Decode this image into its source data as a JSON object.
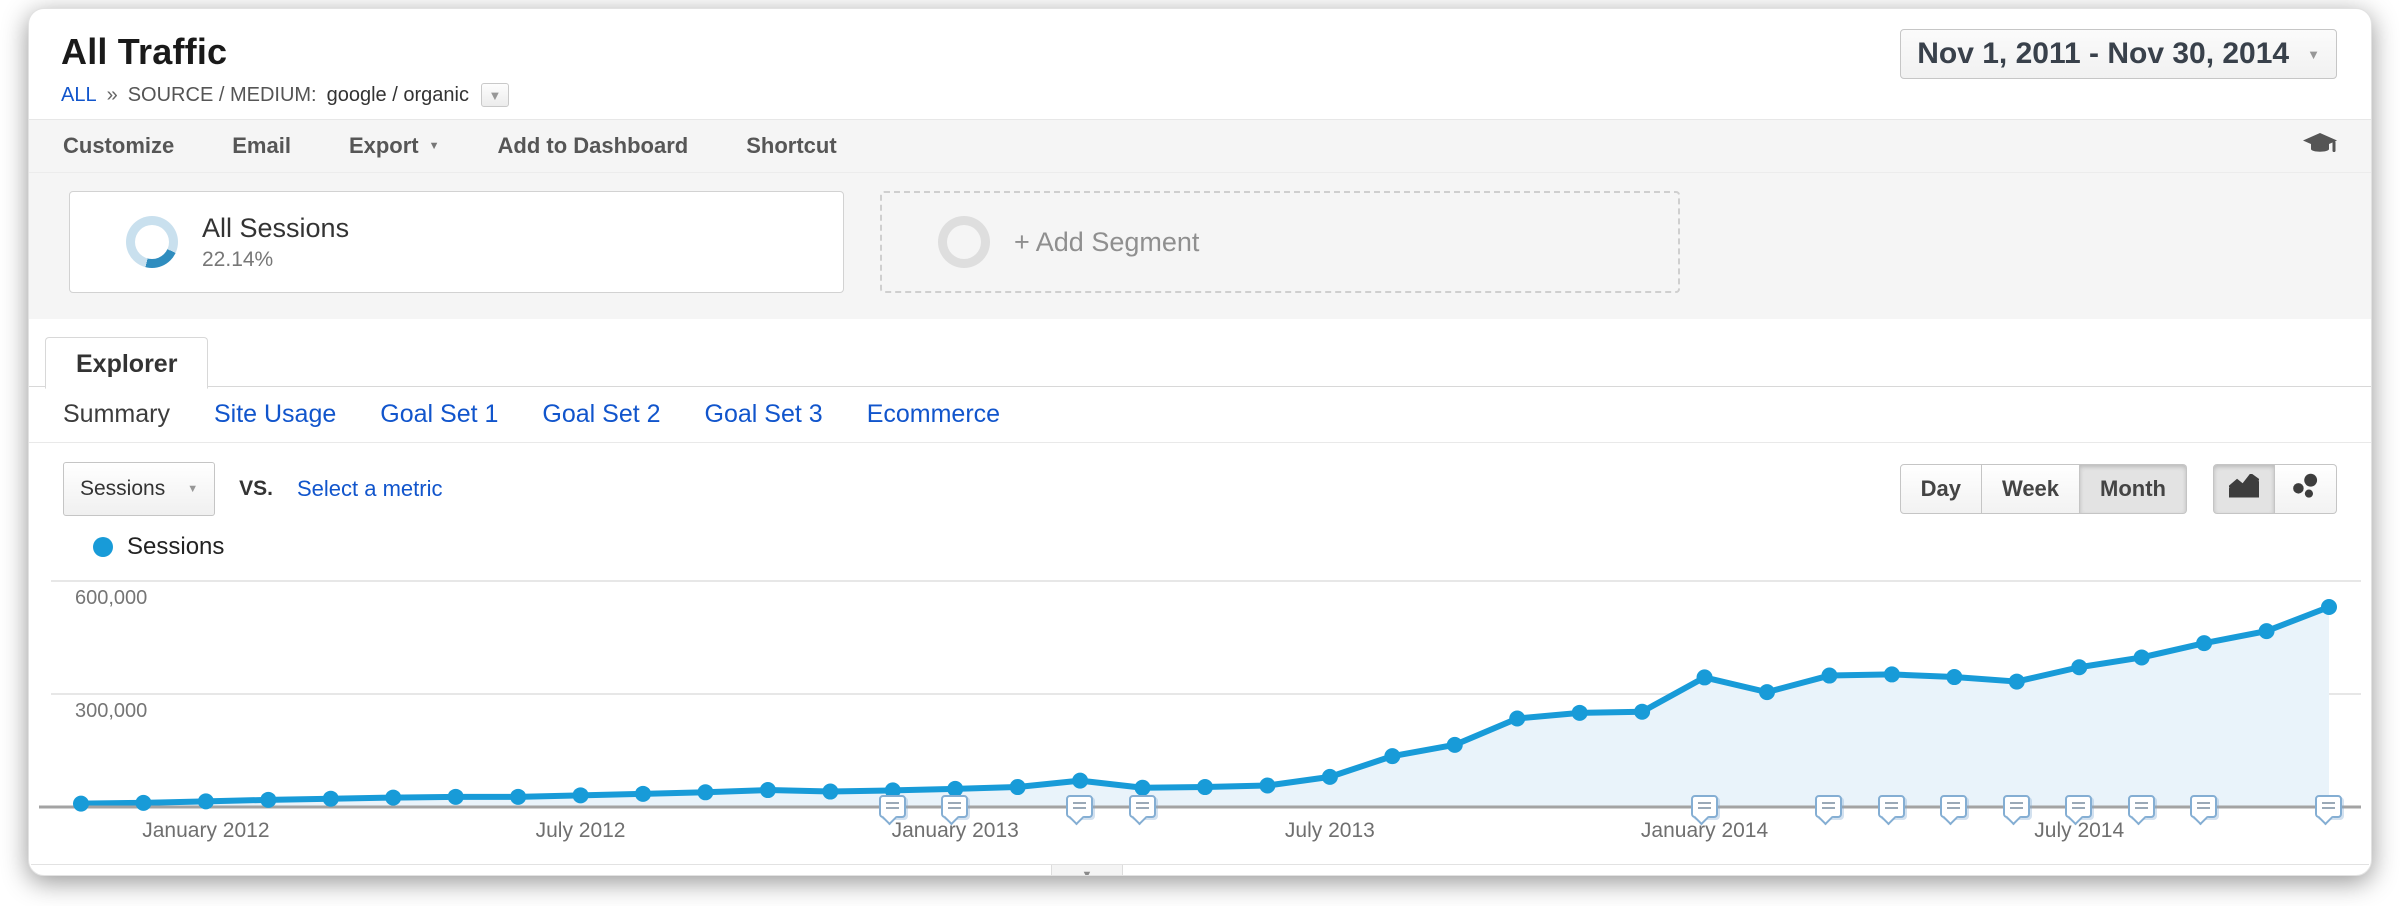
{
  "header": {
    "title": "All Traffic",
    "breadcrumb": {
      "root": "ALL",
      "separator": "»",
      "label": "SOURCE / MEDIUM:",
      "value": "google / organic"
    },
    "date_range": "Nov 1, 2011 - Nov 30, 2014"
  },
  "toolbar": {
    "items": [
      {
        "label": "Customize"
      },
      {
        "label": "Email"
      },
      {
        "label": "Export",
        "caret": true
      },
      {
        "label": "Add to Dashboard"
      },
      {
        "label": "Shortcut"
      }
    ],
    "education_icon": "graduation-cap"
  },
  "segments": {
    "all_sessions": {
      "label": "All Sessions",
      "percent": "22.14%",
      "ring_arc_color": "#2f8dbf",
      "ring_track_color": "#c9e0ee"
    },
    "add_segment_label": "+ Add Segment"
  },
  "explorer": {
    "tab_label": "Explorer",
    "subtabs": [
      {
        "label": "Summary",
        "active": true
      },
      {
        "label": "Site Usage"
      },
      {
        "label": "Goal Set 1"
      },
      {
        "label": "Goal Set 2"
      },
      {
        "label": "Goal Set 3"
      },
      {
        "label": "Ecommerce"
      }
    ]
  },
  "controls": {
    "metric_selector_value": "Sessions",
    "vs_label": "vs.",
    "select_metric_label": "Select a metric",
    "granularity": [
      {
        "label": "Day"
      },
      {
        "label": "Week"
      },
      {
        "label": "Month",
        "active": true
      }
    ],
    "chart_type_buttons": [
      {
        "name": "line-chart",
        "active": true
      },
      {
        "name": "motion-chart",
        "active": false
      }
    ]
  },
  "legend": {
    "label": "Sessions"
  },
  "colors": {
    "link": "#1155cc",
    "series_line": "#189bd8",
    "series_fill": "#e9f3fa",
    "axis_line": "#a3a3a3"
  },
  "chart_data": {
    "type": "line",
    "title": "Sessions by month",
    "series": [
      {
        "name": "Sessions",
        "color": "#189bd8",
        "values": [
          9000,
          11000,
          15000,
          19000,
          22000,
          25000,
          27000,
          27000,
          31000,
          35000,
          39000,
          45000,
          41000,
          44000,
          48000,
          53000,
          70000,
          51000,
          53000,
          57000,
          80000,
          135000,
          165000,
          235000,
          250000,
          253000,
          344000,
          305000,
          349000,
          352000,
          345000,
          333000,
          371000,
          397000,
          435000,
          467000,
          531000
        ]
      }
    ],
    "x": [
      "Nov 2011",
      "Dec 2011",
      "Jan 2012",
      "Feb 2012",
      "Mar 2012",
      "Apr 2012",
      "May 2012",
      "Jun 2012",
      "Jul 2012",
      "Aug 2012",
      "Sep 2012",
      "Oct 2012",
      "Nov 2012",
      "Dec 2012",
      "Jan 2013",
      "Feb 2013",
      "Mar 2013",
      "Apr 2013",
      "May 2013",
      "Jun 2013",
      "Jul 2013",
      "Aug 2013",
      "Sep 2013",
      "Oct 2013",
      "Nov 2013",
      "Dec 2013",
      "Jan 2014",
      "Feb 2014",
      "Mar 2014",
      "Apr 2014",
      "May 2014",
      "Jun 2014",
      "Jul 2014",
      "Aug 2014",
      "Sep 2014",
      "Oct 2014",
      "Nov 2014"
    ],
    "x_axis_labels": [
      {
        "index": 2,
        "label": "January 2012"
      },
      {
        "index": 8,
        "label": "July 2012"
      },
      {
        "index": 14,
        "label": "January 2013"
      },
      {
        "index": 20,
        "label": "July 2013"
      },
      {
        "index": 26,
        "label": "January 2014"
      },
      {
        "index": 32,
        "label": "July 2014"
      }
    ],
    "yticks": [
      {
        "value": 600000,
        "label": "600,000"
      },
      {
        "value": 300000,
        "label": "300,000"
      }
    ],
    "ylim": [
      0,
      650000
    ],
    "grid": "horizontal",
    "legend_position": "top-left",
    "annotation_indices": [
      13,
      14,
      16,
      17,
      26,
      28,
      29,
      30,
      31,
      32,
      33,
      34,
      36
    ],
    "area_fill": "#e9f3fa"
  }
}
